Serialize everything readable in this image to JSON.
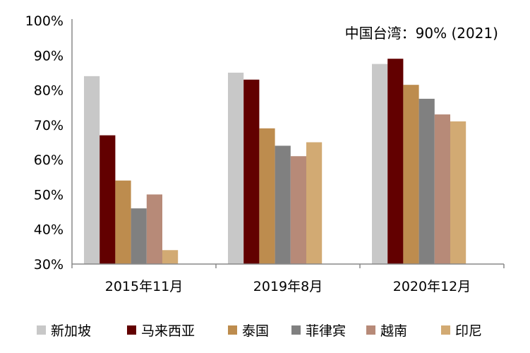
{
  "chart_data": {
    "type": "bar",
    "title": "",
    "annotation": "中国台湾：90% (2021)",
    "categories": [
      "2015年11月",
      "2019年8月",
      "2020年12月"
    ],
    "ylim": [
      30,
      100
    ],
    "yticks": [
      "30%",
      "40%",
      "50%",
      "60%",
      "70%",
      "80%",
      "90%",
      "100%"
    ],
    "grid": false,
    "legend_position": "bottom",
    "series": [
      {
        "name": "新加坡",
        "color": "#C8C8C8",
        "values": [
          84,
          85,
          87.5
        ]
      },
      {
        "name": "马来西亚",
        "color": "#620000",
        "values": [
          67,
          83,
          89
        ]
      },
      {
        "name": "泰国",
        "color": "#BD8C4E",
        "values": [
          54,
          69,
          81.5
        ]
      },
      {
        "name": "菲律宾",
        "color": "#808080",
        "values": [
          46,
          64,
          77.5
        ]
      },
      {
        "name": "越南",
        "color": "#B78A78",
        "values": [
          50,
          61,
          73
        ]
      },
      {
        "name": "印尼",
        "color": "#D2AA73",
        "values": [
          34,
          65,
          71
        ]
      }
    ]
  }
}
